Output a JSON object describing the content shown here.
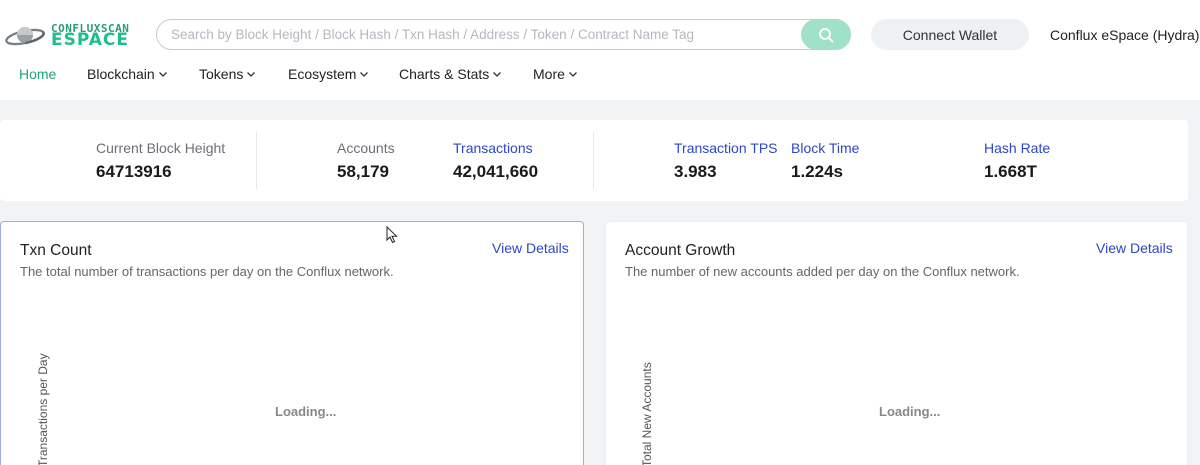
{
  "header": {
    "brand_top": "CONFLUXSCAN",
    "brand_main": "eSpace",
    "search_placeholder": "Search by Block Height / Block Hash / Txn Hash / Address / Token / Contract Name Tag",
    "connect_wallet": "Connect Wallet",
    "network": "Conflux eSpace (Hydra)"
  },
  "nav": [
    {
      "label": "Home",
      "active": true,
      "dropdown": false
    },
    {
      "label": "Blockchain",
      "active": false,
      "dropdown": true
    },
    {
      "label": "Tokens",
      "active": false,
      "dropdown": true
    },
    {
      "label": "Ecosystem",
      "active": false,
      "dropdown": true
    },
    {
      "label": "Charts & Stats",
      "active": false,
      "dropdown": true
    },
    {
      "label": "More",
      "active": false,
      "dropdown": true
    }
  ],
  "stats": {
    "block_height": {
      "label": "Current Block Height",
      "value": "64713916"
    },
    "accounts": {
      "label": "Accounts",
      "value": "58,179"
    },
    "transactions": {
      "label": "Transactions",
      "value": "42,041,660"
    },
    "tps": {
      "label": "Transaction TPS",
      "value": "3.983"
    },
    "block_time": {
      "label": "Block Time",
      "value": "1.224s"
    },
    "hash_rate": {
      "label": "Hash Rate",
      "value": "1.668T"
    }
  },
  "cards": {
    "txn_count": {
      "title": "Txn Count",
      "description": "The total number of transactions per day on the Conflux network.",
      "details": "View Details",
      "ylabel": "Transactions per Day",
      "loading": "Loading..."
    },
    "account_growth": {
      "title": "Account Growth",
      "description": "The number of new accounts added per day on the Conflux network.",
      "details": "View Details",
      "ylabel": "Total New Accounts",
      "loading": "Loading..."
    }
  },
  "colors": {
    "accent": "#1ba67a",
    "link": "#2c47c9",
    "search_button": "#9fe2c8"
  },
  "icons": {
    "logo": "planet-logo-icon",
    "search": "search-icon",
    "dropdown": "chevron-down-icon",
    "cursor": "mouse-pointer-icon"
  }
}
